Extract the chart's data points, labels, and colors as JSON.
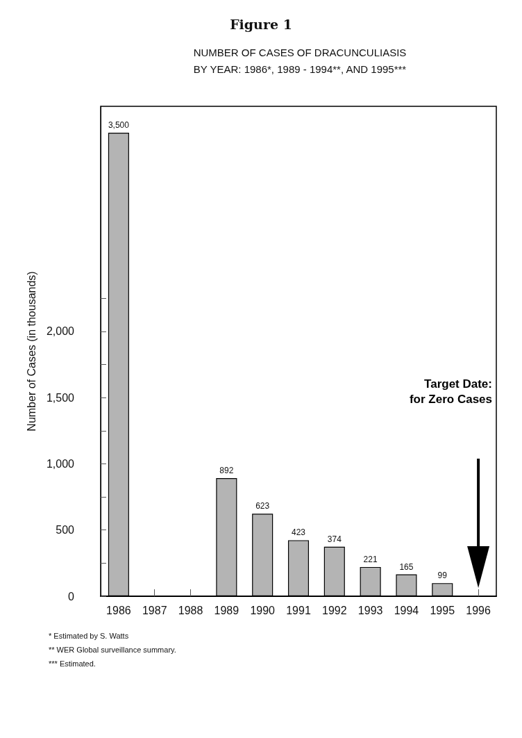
{
  "chart_data": {
    "type": "bar",
    "title": "Figure 1",
    "subtitle": "NUMBER OF CASES OF DRACUNCULIASIS\nBY YEAR: 1986*, 1989 - 1994**, AND 1995***",
    "ylabel": "Number of Cases (in thousands)",
    "categories": [
      "1986",
      "1987",
      "1988",
      "1989",
      "1990",
      "1991",
      "1992",
      "1993",
      "1994",
      "1995",
      "1996"
    ],
    "values": [
      3500,
      null,
      null,
      892,
      623,
      423,
      374,
      221,
      165,
      99,
      null
    ],
    "value_labels": [
      "3,500",
      null,
      null,
      "892",
      "623",
      "423",
      "374",
      "221",
      "165",
      "99",
      null
    ],
    "color": "#b4b4b4",
    "ylim": [
      0,
      3700
    ],
    "yticks": [
      {
        "value": 0,
        "label": "0"
      },
      {
        "value": 250,
        "label": null
      },
      {
        "value": 500,
        "label": "500"
      },
      {
        "value": 750,
        "label": null
      },
      {
        "value": 1000,
        "label": "1,000"
      },
      {
        "value": 1250,
        "label": null
      },
      {
        "value": 1500,
        "label": "1,500"
      },
      {
        "value": 1750,
        "label": null
      },
      {
        "value": 2000,
        "label": "2,000"
      },
      {
        "value": 2250,
        "label": null
      }
    ],
    "grid": false,
    "annotations": [
      "Target Date:\nfor Zero Cases",
      "* Estimated by S. Watts",
      "** WER Global surveillance summary.",
      "*** Estimated."
    ]
  }
}
